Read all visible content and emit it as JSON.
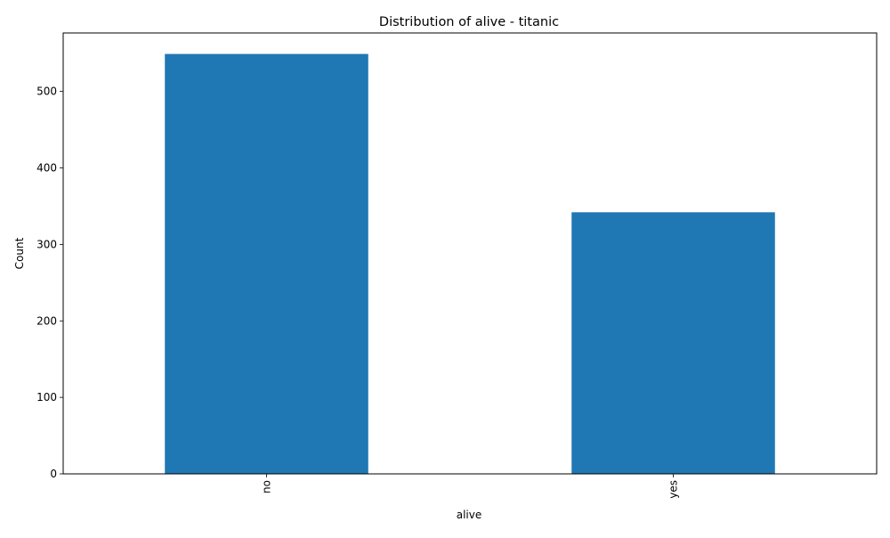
{
  "chart_data": {
    "type": "bar",
    "title": "Distribution of alive - titanic",
    "xlabel": "alive",
    "ylabel": "Count",
    "categories": [
      "no",
      "yes"
    ],
    "values": [
      549,
      342
    ],
    "ylim": [
      0,
      576.45
    ],
    "yticks": [
      0,
      100,
      200,
      300,
      400,
      500
    ],
    "bar_color": "#1f77b4",
    "grid": false,
    "legend": "none"
  }
}
